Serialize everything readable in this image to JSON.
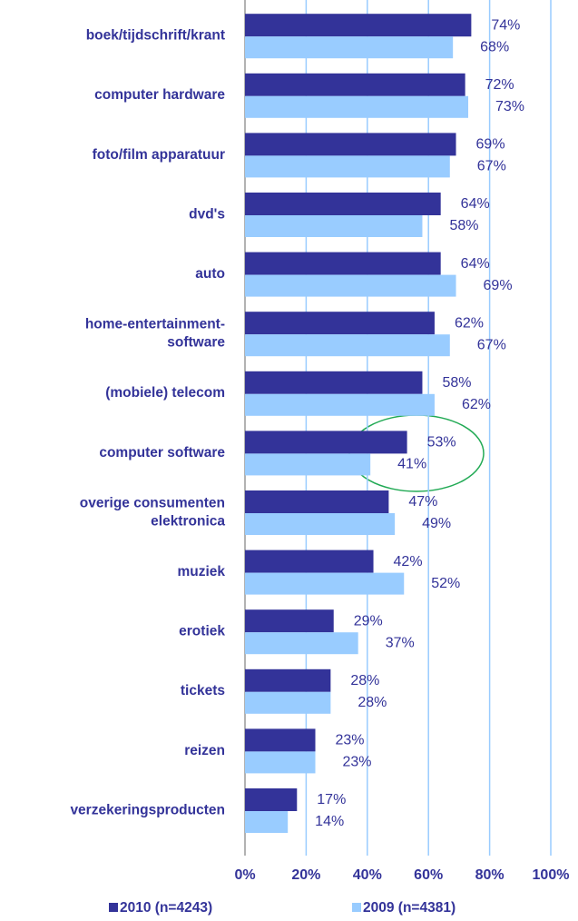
{
  "chart_data": {
    "type": "bar",
    "orientation": "horizontal",
    "categories": [
      [
        "boek/tijdschrift/krant"
      ],
      [
        "computer hardware"
      ],
      [
        "foto/film apparatuur"
      ],
      [
        "dvd's"
      ],
      [
        "auto"
      ],
      [
        "home-entertainment-",
        "software"
      ],
      [
        "(mobiele) telecom"
      ],
      [
        "computer software"
      ],
      [
        "overige consumenten",
        "elektronica"
      ],
      [
        "muziek"
      ],
      [
        "erotiek"
      ],
      [
        "tickets"
      ],
      [
        "reizen"
      ],
      [
        "verzekeringsproducten"
      ]
    ],
    "series": [
      {
        "name": "2010 (n=4243)",
        "color": "#333399",
        "values": [
          74,
          72,
          69,
          64,
          64,
          62,
          58,
          53,
          47,
          42,
          29,
          28,
          23,
          17
        ],
        "value_labels": [
          "74%",
          "72%",
          "69%",
          "64%",
          "64%",
          "62%",
          "58%",
          "53%",
          "47%",
          "42%",
          "29%",
          "28%",
          "23%",
          "17%"
        ]
      },
      {
        "name": "2009 (n=4381)",
        "color": "#99ccff",
        "values": [
          68,
          73,
          67,
          58,
          69,
          67,
          62,
          41,
          49,
          52,
          37,
          28,
          23,
          14
        ],
        "value_labels": [
          "68%",
          "73%",
          "67%",
          "58%",
          "69%",
          "67%",
          "62%",
          "41%",
          "49%",
          "52%",
          "37%",
          "28%",
          "23%",
          "14%"
        ]
      }
    ],
    "xlim": [
      0,
      100
    ],
    "xticks": [
      {
        "value": 0,
        "label": "0%"
      },
      {
        "value": 20,
        "label": "20%"
      },
      {
        "value": 40,
        "label": "40%"
      },
      {
        "value": 60,
        "label": "60%"
      },
      {
        "value": 80,
        "label": "80%"
      },
      {
        "value": 100,
        "label": "100%"
      }
    ],
    "grid": true,
    "legend": "bottom"
  }
}
